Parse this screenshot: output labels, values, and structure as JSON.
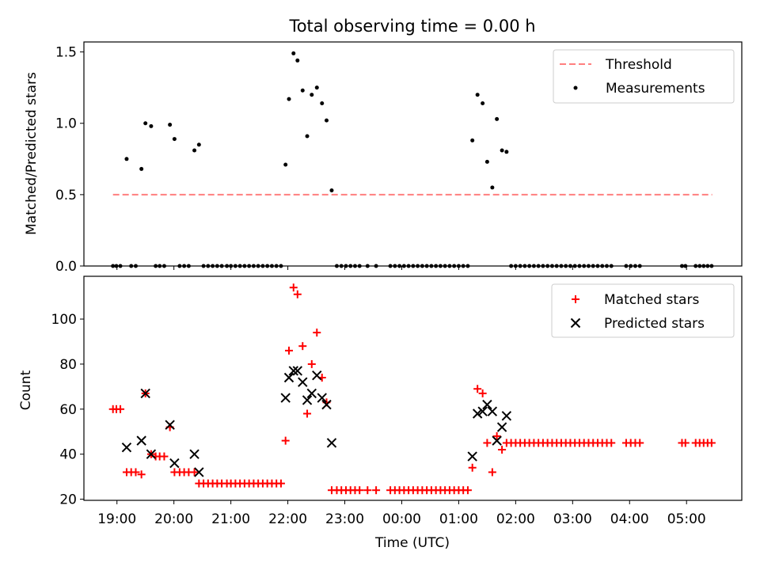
{
  "title": "Total observing time = 0.00 h",
  "colors": {
    "threshold": "#ff7f7f",
    "measurements": "#000000",
    "matched": "#ff0000",
    "predicted": "#000000"
  },
  "x_axis": {
    "label": "Time (UTC)",
    "ticks": [
      {
        "t": 19,
        "label": "19:00"
      },
      {
        "t": 20,
        "label": "20:00"
      },
      {
        "t": 21,
        "label": "21:00"
      },
      {
        "t": 22,
        "label": "22:00"
      },
      {
        "t": 23,
        "label": "23:00"
      },
      {
        "t": 24,
        "label": "00:00"
      },
      {
        "t": 25,
        "label": "01:00"
      },
      {
        "t": 26,
        "label": "02:00"
      },
      {
        "t": 27,
        "label": "03:00"
      },
      {
        "t": 28,
        "label": "04:00"
      },
      {
        "t": 29,
        "label": "05:00"
      }
    ]
  },
  "chart_data": [
    {
      "type": "scatter",
      "panel": "top",
      "ylabel": "Matched/Predicted stars",
      "xlim": [
        18.42,
        29.97
      ],
      "ylim": [
        0.0,
        1.57
      ],
      "yticks": [
        {
          "v": 0.0,
          "label": "0.0"
        },
        {
          "v": 0.5,
          "label": "0.5"
        },
        {
          "v": 1.0,
          "label": "1.0"
        },
        {
          "v": 1.5,
          "label": "1.5"
        }
      ],
      "legend": {
        "position": "upper right",
        "entries": [
          "Threshold",
          "Measurements"
        ]
      },
      "threshold": {
        "name": "Threshold",
        "y": 0.5,
        "x_range": [
          18.93,
          29.45
        ],
        "style": "dashed"
      },
      "measurements": {
        "name": "Measurements",
        "points": [
          [
            18.93,
            0
          ],
          [
            18.99,
            0
          ],
          [
            19.06,
            0
          ],
          [
            19.17,
            0.75
          ],
          [
            19.25,
            0
          ],
          [
            19.33,
            0
          ],
          [
            19.43,
            0.68
          ],
          [
            19.5,
            1.0
          ],
          [
            19.6,
            0.98
          ],
          [
            19.68,
            0
          ],
          [
            19.75,
            0
          ],
          [
            19.83,
            0
          ],
          [
            19.93,
            0.99
          ],
          [
            20.01,
            0.89
          ],
          [
            20.1,
            0
          ],
          [
            20.18,
            0
          ],
          [
            20.26,
            0
          ],
          [
            20.36,
            0.81
          ],
          [
            20.44,
            0.85
          ],
          [
            20.52,
            0
          ],
          [
            20.6,
            0
          ],
          [
            20.68,
            0
          ],
          [
            20.76,
            0
          ],
          [
            20.84,
            0
          ],
          [
            20.93,
            0
          ],
          [
            21.0,
            0
          ],
          [
            21.08,
            0
          ],
          [
            21.16,
            0
          ],
          [
            21.24,
            0
          ],
          [
            21.32,
            0
          ],
          [
            21.4,
            0
          ],
          [
            21.48,
            0
          ],
          [
            21.56,
            0
          ],
          [
            21.64,
            0
          ],
          [
            21.72,
            0
          ],
          [
            21.8,
            0
          ],
          [
            21.88,
            0
          ],
          [
            21.96,
            0.71
          ],
          [
            22.02,
            1.17
          ],
          [
            22.1,
            1.49
          ],
          [
            22.17,
            1.44
          ],
          [
            22.26,
            1.23
          ],
          [
            22.34,
            0.91
          ],
          [
            22.42,
            1.2
          ],
          [
            22.51,
            1.25
          ],
          [
            22.6,
            1.14
          ],
          [
            22.68,
            1.02
          ],
          [
            22.77,
            0.53
          ],
          [
            22.86,
            0
          ],
          [
            22.94,
            0
          ],
          [
            23.02,
            0
          ],
          [
            23.1,
            0
          ],
          [
            23.18,
            0
          ],
          [
            23.26,
            0
          ],
          [
            23.4,
            0
          ],
          [
            23.55,
            0
          ],
          [
            23.8,
            0
          ],
          [
            23.88,
            0
          ],
          [
            23.96,
            0
          ],
          [
            24.04,
            0
          ],
          [
            24.12,
            0
          ],
          [
            24.2,
            0
          ],
          [
            24.28,
            0
          ],
          [
            24.36,
            0
          ],
          [
            24.44,
            0
          ],
          [
            24.52,
            0
          ],
          [
            24.6,
            0
          ],
          [
            24.68,
            0
          ],
          [
            24.76,
            0
          ],
          [
            24.84,
            0
          ],
          [
            24.92,
            0
          ],
          [
            25.0,
            0
          ],
          [
            25.08,
            0
          ],
          [
            25.16,
            0
          ],
          [
            25.24,
            0.88
          ],
          [
            25.33,
            1.2
          ],
          [
            25.42,
            1.14
          ],
          [
            25.5,
            0.73
          ],
          [
            25.59,
            0.55
          ],
          [
            25.67,
            1.03
          ],
          [
            25.76,
            0.81
          ],
          [
            25.84,
            0.8
          ],
          [
            25.92,
            0
          ],
          [
            26.0,
            0
          ],
          [
            26.08,
            0
          ],
          [
            26.16,
            0
          ],
          [
            26.24,
            0
          ],
          [
            26.32,
            0
          ],
          [
            26.4,
            0
          ],
          [
            26.48,
            0
          ],
          [
            26.56,
            0
          ],
          [
            26.64,
            0
          ],
          [
            26.72,
            0
          ],
          [
            26.8,
            0
          ],
          [
            26.88,
            0
          ],
          [
            26.96,
            0
          ],
          [
            27.04,
            0
          ],
          [
            27.12,
            0
          ],
          [
            27.2,
            0
          ],
          [
            27.28,
            0
          ],
          [
            27.36,
            0
          ],
          [
            27.44,
            0
          ],
          [
            27.52,
            0
          ],
          [
            27.6,
            0
          ],
          [
            27.68,
            0
          ],
          [
            27.94,
            0
          ],
          [
            28.02,
            0
          ],
          [
            28.1,
            0
          ],
          [
            28.18,
            0
          ],
          [
            28.92,
            0
          ],
          [
            28.98,
            0
          ],
          [
            29.16,
            0
          ],
          [
            29.23,
            0
          ],
          [
            29.3,
            0
          ],
          [
            29.37,
            0
          ],
          [
            29.44,
            0
          ]
        ]
      }
    },
    {
      "type": "scatter",
      "panel": "bottom",
      "ylabel": "Count",
      "xlabel": "Time (UTC)",
      "xlim": [
        18.42,
        29.97
      ],
      "ylim": [
        19.5,
        119.0
      ],
      "yticks": [
        {
          "v": 20,
          "label": "20"
        },
        {
          "v": 40,
          "label": "40"
        },
        {
          "v": 60,
          "label": "60"
        },
        {
          "v": 80,
          "label": "80"
        },
        {
          "v": 100,
          "label": "100"
        }
      ],
      "legend": {
        "position": "upper right",
        "entries": [
          "Matched stars",
          "Predicted stars"
        ]
      },
      "series": [
        {
          "name": "Matched stars",
          "marker": "plus",
          "points": [
            [
              18.93,
              60
            ],
            [
              18.99,
              60
            ],
            [
              19.06,
              60
            ],
            [
              19.17,
              32
            ],
            [
              19.25,
              32
            ],
            [
              19.33,
              32
            ],
            [
              19.43,
              31
            ],
            [
              19.5,
              67
            ],
            [
              19.6,
              40
            ],
            [
              19.68,
              39
            ],
            [
              19.75,
              39
            ],
            [
              19.83,
              39
            ],
            [
              19.93,
              52
            ],
            [
              20.01,
              32
            ],
            [
              20.1,
              32
            ],
            [
              20.18,
              32
            ],
            [
              20.26,
              32
            ],
            [
              20.36,
              32
            ],
            [
              20.44,
              27
            ],
            [
              20.52,
              27
            ],
            [
              20.6,
              27
            ],
            [
              20.68,
              27
            ],
            [
              20.76,
              27
            ],
            [
              20.84,
              27
            ],
            [
              20.93,
              27
            ],
            [
              21.0,
              27
            ],
            [
              21.08,
              27
            ],
            [
              21.16,
              27
            ],
            [
              21.24,
              27
            ],
            [
              21.32,
              27
            ],
            [
              21.4,
              27
            ],
            [
              21.48,
              27
            ],
            [
              21.56,
              27
            ],
            [
              21.64,
              27
            ],
            [
              21.72,
              27
            ],
            [
              21.8,
              27
            ],
            [
              21.88,
              27
            ],
            [
              21.96,
              46
            ],
            [
              22.02,
              86
            ],
            [
              22.1,
              114
            ],
            [
              22.17,
              111
            ],
            [
              22.26,
              88
            ],
            [
              22.34,
              58
            ],
            [
              22.42,
              80
            ],
            [
              22.51,
              94
            ],
            [
              22.6,
              74
            ],
            [
              22.68,
              63
            ],
            [
              22.77,
              24
            ],
            [
              22.86,
              24
            ],
            [
              22.94,
              24
            ],
            [
              23.02,
              24
            ],
            [
              23.1,
              24
            ],
            [
              23.18,
              24
            ],
            [
              23.26,
              24
            ],
            [
              23.4,
              24
            ],
            [
              23.55,
              24
            ],
            [
              23.8,
              24
            ],
            [
              23.88,
              24
            ],
            [
              23.96,
              24
            ],
            [
              24.04,
              24
            ],
            [
              24.12,
              24
            ],
            [
              24.2,
              24
            ],
            [
              24.28,
              24
            ],
            [
              24.36,
              24
            ],
            [
              24.44,
              24
            ],
            [
              24.52,
              24
            ],
            [
              24.6,
              24
            ],
            [
              24.68,
              24
            ],
            [
              24.76,
              24
            ],
            [
              24.84,
              24
            ],
            [
              24.92,
              24
            ],
            [
              25.0,
              24
            ],
            [
              25.08,
              24
            ],
            [
              25.16,
              24
            ],
            [
              25.24,
              34
            ],
            [
              25.33,
              69
            ],
            [
              25.42,
              67
            ],
            [
              25.5,
              45
            ],
            [
              25.59,
              32
            ],
            [
              25.67,
              48
            ],
            [
              25.76,
              42
            ],
            [
              25.84,
              45
            ],
            [
              25.92,
              45
            ],
            [
              26.0,
              45
            ],
            [
              26.08,
              45
            ],
            [
              26.16,
              45
            ],
            [
              26.24,
              45
            ],
            [
              26.32,
              45
            ],
            [
              26.4,
              45
            ],
            [
              26.48,
              45
            ],
            [
              26.56,
              45
            ],
            [
              26.64,
              45
            ],
            [
              26.72,
              45
            ],
            [
              26.8,
              45
            ],
            [
              26.88,
              45
            ],
            [
              26.96,
              45
            ],
            [
              27.04,
              45
            ],
            [
              27.12,
              45
            ],
            [
              27.2,
              45
            ],
            [
              27.28,
              45
            ],
            [
              27.36,
              45
            ],
            [
              27.44,
              45
            ],
            [
              27.52,
              45
            ],
            [
              27.6,
              45
            ],
            [
              27.68,
              45
            ],
            [
              27.94,
              45
            ],
            [
              28.02,
              45
            ],
            [
              28.1,
              45
            ],
            [
              28.18,
              45
            ],
            [
              28.92,
              45
            ],
            [
              28.98,
              45
            ],
            [
              29.16,
              45
            ],
            [
              29.23,
              45
            ],
            [
              29.3,
              45
            ],
            [
              29.37,
              45
            ],
            [
              29.44,
              45
            ]
          ]
        },
        {
          "name": "Predicted stars",
          "marker": "x",
          "points": [
            [
              19.17,
              43
            ],
            [
              19.43,
              46
            ],
            [
              19.5,
              67
            ],
            [
              19.6,
              40
            ],
            [
              19.93,
              53
            ],
            [
              20.01,
              36
            ],
            [
              20.36,
              40
            ],
            [
              20.44,
              32
            ],
            [
              21.96,
              65
            ],
            [
              22.02,
              74
            ],
            [
              22.1,
              77
            ],
            [
              22.17,
              77
            ],
            [
              22.26,
              72
            ],
            [
              22.34,
              64
            ],
            [
              22.42,
              67
            ],
            [
              22.51,
              75
            ],
            [
              22.6,
              65
            ],
            [
              22.68,
              62
            ],
            [
              22.77,
              45
            ],
            [
              25.24,
              39
            ],
            [
              25.33,
              58
            ],
            [
              25.42,
              59
            ],
            [
              25.5,
              62
            ],
            [
              25.59,
              59
            ],
            [
              25.67,
              46
            ],
            [
              25.76,
              52
            ],
            [
              25.84,
              57
            ]
          ]
        }
      ]
    }
  ]
}
